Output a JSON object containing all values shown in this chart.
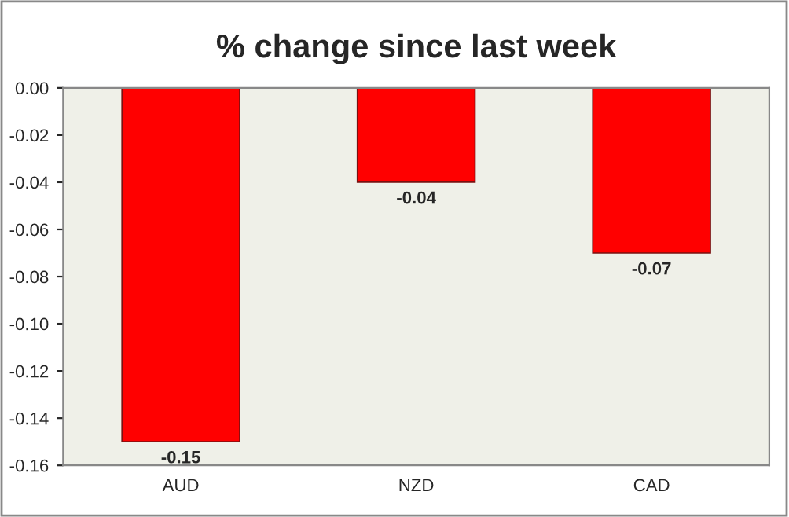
{
  "chart_data": {
    "type": "bar",
    "title": "% change since last week",
    "categories": [
      "AUD",
      "NZD",
      "CAD"
    ],
    "values": [
      -0.15,
      -0.04,
      -0.07
    ],
    "color": "#ff0000",
    "data_labels": true,
    "grid": false,
    "legend": false,
    "ylim": [
      -0.16,
      0.0
    ],
    "yticks": [
      {
        "value": -0.16,
        "label": "-0.16"
      },
      {
        "value": -0.14,
        "label": "-0.14"
      },
      {
        "value": -0.12,
        "label": "-0.12"
      },
      {
        "value": -0.1,
        "label": "-0.10"
      },
      {
        "value": -0.08,
        "label": "-0.08"
      },
      {
        "value": -0.06,
        "label": "-0.06"
      },
      {
        "value": -0.04,
        "label": "-0.04"
      },
      {
        "value": -0.02,
        "label": "-0.02"
      },
      {
        "value": 0.0,
        "label": "0.00"
      }
    ]
  }
}
